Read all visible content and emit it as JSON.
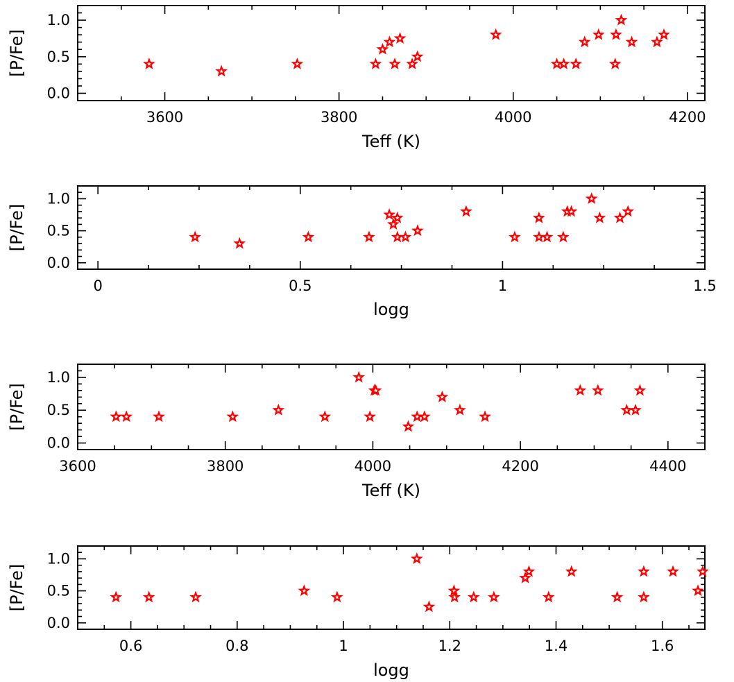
{
  "chart_data": [
    {
      "type": "scatter",
      "xlabel": "Teff (K)",
      "ylabel": "[P/Fe]",
      "xlim": [
        3500,
        4220
      ],
      "ylim": [
        -0.1,
        1.2
      ],
      "xticks": [
        3600,
        3800,
        4000,
        4200
      ],
      "xticklabels": [
        "3600",
        "3800",
        "4000",
        "4200"
      ],
      "yticks": [
        0.0,
        0.5,
        1.0
      ],
      "yticklabels": [
        "0.0",
        "0.5",
        "1.0"
      ],
      "series": [
        {
          "name": "stars",
          "color": "#ff0000",
          "marker": "star",
          "x": [
            3582,
            3665,
            3752,
            3842,
            3850,
            3858,
            3864,
            3870,
            3884,
            3890,
            3980,
            4050,
            4058,
            4072,
            4082,
            4098,
            4117,
            4118,
            4124,
            4136,
            4165,
            4173
          ],
          "y": [
            0.4,
            0.3,
            0.4,
            0.4,
            0.6,
            0.7,
            0.4,
            0.75,
            0.4,
            0.5,
            0.8,
            0.4,
            0.4,
            0.4,
            0.7,
            0.8,
            0.4,
            0.8,
            1.0,
            0.7,
            0.7,
            0.8
          ]
        }
      ]
    },
    {
      "type": "scatter",
      "xlabel": "logg",
      "ylabel": "[P/Fe]",
      "xlim": [
        -0.05,
        1.5
      ],
      "ylim": [
        -0.1,
        1.2
      ],
      "xticks": [
        0,
        0.5,
        1,
        1.5
      ],
      "xticklabels": [
        "0",
        "0.5",
        "1",
        "1.5"
      ],
      "yticks": [
        0.0,
        0.5,
        1.0
      ],
      "yticklabels": [
        "0.0",
        "0.5",
        "1.0"
      ],
      "series": [
        {
          "name": "stars",
          "color": "#ff0000",
          "marker": "star",
          "x": [
            0.24,
            0.35,
            0.52,
            0.67,
            0.72,
            0.73,
            0.74,
            0.74,
            0.76,
            0.79,
            0.91,
            1.03,
            1.09,
            1.09,
            1.11,
            1.15,
            1.16,
            1.17,
            1.22,
            1.24,
            1.29,
            1.31
          ],
          "y": [
            0.4,
            0.3,
            0.4,
            0.4,
            0.75,
            0.6,
            0.7,
            0.4,
            0.4,
            0.5,
            0.8,
            0.4,
            0.7,
            0.4,
            0.4,
            0.4,
            0.8,
            0.8,
            1.0,
            0.7,
            0.7,
            0.8
          ]
        }
      ]
    },
    {
      "type": "scatter",
      "xlabel": "Teff (K)",
      "ylabel": "[P/Fe]",
      "xlim": [
        3600,
        4450
      ],
      "ylim": [
        -0.1,
        1.2
      ],
      "xticks": [
        3600,
        3800,
        4000,
        4200,
        4400
      ],
      "xticklabels": [
        "3600",
        "3800",
        "4000",
        "4200",
        "4400"
      ],
      "yticks": [
        0.0,
        0.5,
        1.0
      ],
      "yticklabels": [
        "0.0",
        "0.5",
        "1.0"
      ],
      "series": [
        {
          "name": "stars",
          "color": "#ff0000",
          "marker": "star",
          "x": [
            3652,
            3666,
            3710,
            3810,
            3872,
            3935,
            3981,
            3996,
            4002,
            4004,
            4048,
            4060,
            4070,
            4094,
            4118,
            4152,
            4281,
            4305,
            4344,
            4356,
            4362
          ],
          "y": [
            0.4,
            0.4,
            0.4,
            0.4,
            0.5,
            0.4,
            1.0,
            0.4,
            0.8,
            0.8,
            0.25,
            0.4,
            0.4,
            0.7,
            0.5,
            0.4,
            0.8,
            0.8,
            0.5,
            0.5,
            0.8
          ]
        }
      ]
    },
    {
      "type": "scatter",
      "xlabel": "logg",
      "ylabel": "[P/Fe]",
      "xlim": [
        0.5,
        1.68
      ],
      "ylim": [
        -0.1,
        1.2
      ],
      "xticks": [
        0.6,
        0.8,
        1.0,
        1.2,
        1.4,
        1.6
      ],
      "xticklabels": [
        "0.6",
        "0.8",
        "1",
        "1.2",
        "1.4",
        "1.6"
      ],
      "yticks": [
        0.0,
        0.5,
        1.0
      ],
      "yticklabels": [
        "0.0",
        "0.5",
        "1.0"
      ],
      "series": [
        {
          "name": "stars",
          "color": "#ff0000",
          "marker": "star",
          "x": [
            0.572,
            0.634,
            0.722,
            0.926,
            0.988,
            1.138,
            1.161,
            1.208,
            1.209,
            1.245,
            1.283,
            1.342,
            1.349,
            1.386,
            1.429,
            1.515,
            1.565,
            1.565,
            1.62,
            1.667,
            1.676
          ],
          "y": [
            0.4,
            0.4,
            0.4,
            0.5,
            0.4,
            1.0,
            0.25,
            0.5,
            0.4,
            0.4,
            0.4,
            0.7,
            0.8,
            0.4,
            0.8,
            0.4,
            0.4,
            0.8,
            0.8,
            0.5,
            0.8
          ]
        }
      ]
    }
  ]
}
